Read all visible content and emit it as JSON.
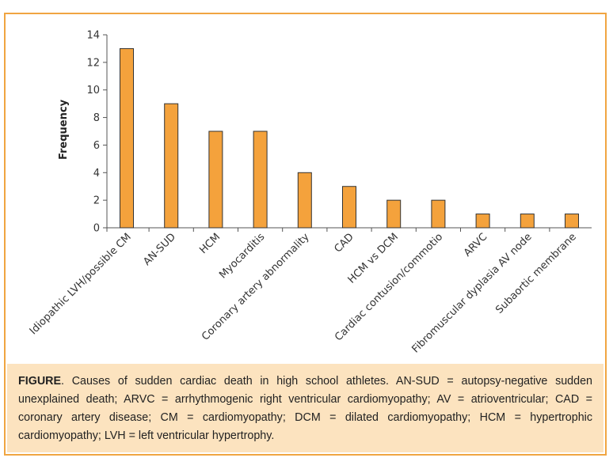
{
  "colors": {
    "border": "#f0a541",
    "bar": "#f4a23c",
    "bar_stroke": "#333333",
    "caption_bg": "#fce3bf"
  },
  "chart_data": {
    "type": "bar",
    "title": "",
    "xlabel": "",
    "ylabel": "Frequency",
    "ylim": [
      0,
      14
    ],
    "yticks": [
      0,
      2,
      4,
      6,
      8,
      10,
      12,
      14
    ],
    "categories": [
      "Idiopathic LVH/possible CM",
      "AN-SUD",
      "HCM",
      "Myocarditis",
      "Coronary artery abnormality",
      "CAD",
      "HCM vs DCM",
      "Cardiac contusion/commotio",
      "ARVC",
      "Fibromuscular dyplasia AV node",
      "Subaortic membrane"
    ],
    "values": [
      13,
      9,
      7,
      7,
      4,
      3,
      2,
      2,
      1,
      1,
      1
    ]
  },
  "caption": {
    "lead": "FIGURE",
    "text": ". Causes of sudden cardiac death in high school athletes. AN-SUD = autopsy-negative sudden unexplained death; ARVC = arrhythmogenic right ventricular cardiomyopathy; AV = atrioventricular; CAD = coronary artery disease; CM = cardiomyopathy; DCM = dilated cardiomyopathy; HCM = hypertrophic cardiomyopathy; LVH = left ventricular hypertrophy."
  }
}
